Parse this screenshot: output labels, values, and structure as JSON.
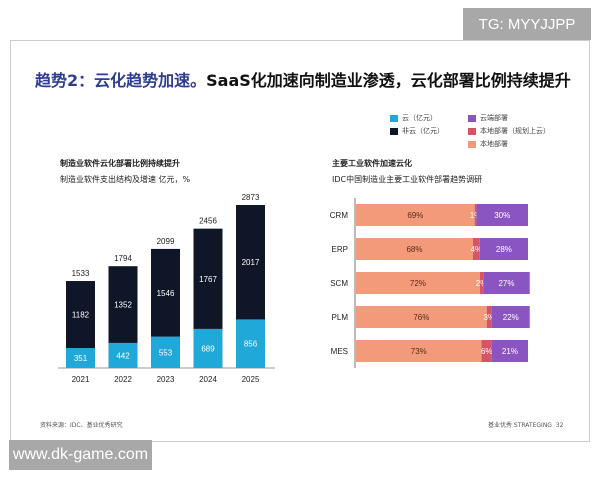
{
  "watermark_top": "TG: MYYJJPP",
  "watermark_bottom": "www.dk-game.com",
  "title": {
    "highlight": "趋势2：云化趋势加速。",
    "rest": "SaaS化加速向制造业渗透，云化部署比例持续提升"
  },
  "legend": [
    {
      "label": "云（亿元）",
      "color": "#1fa8d8"
    },
    {
      "label": "非云（亿元）",
      "color": "#0e1628"
    },
    {
      "label": "云端部署",
      "color": "#8a55c0"
    },
    {
      "label": "本地部署（规划上云）",
      "color": "#d65468"
    },
    {
      "label": "本地部署",
      "color": "#f29a7a"
    }
  ],
  "chart_data": [
    {
      "type": "bar",
      "stacked": true,
      "title": "制造业软件云化部署比例持续提升",
      "subtitle": "制造业软件支出结构及增速 亿元，%",
      "categories": [
        "2021",
        "2022",
        "2023",
        "2024",
        "2025"
      ],
      "series": [
        {
          "name": "云（亿元）",
          "values": [
            351,
            442,
            553,
            689,
            856
          ],
          "color": "#1fa8d8"
        },
        {
          "name": "非云（亿元）",
          "values": [
            1182,
            1352,
            1546,
            1767,
            2017
          ],
          "color": "#0e1628"
        }
      ],
      "totals": [
        1533,
        1794,
        2099,
        2456,
        2873
      ]
    },
    {
      "type": "bar",
      "orientation": "horizontal",
      "stacked": true,
      "title": "主要工业软件加速云化",
      "subtitle": "IDC中国制造业主要工业软件部署趋势调研",
      "categories": [
        "CRM",
        "ERP",
        "SCM",
        "PLM",
        "MES"
      ],
      "series": [
        {
          "name": "本地部署",
          "values": [
            69,
            68,
            72,
            76,
            73
          ],
          "color": "#f29a7a"
        },
        {
          "name": "本地部署（规划上云）",
          "values": [
            1,
            4,
            2,
            3,
            6
          ],
          "color": "#d65468"
        },
        {
          "name": "云端部署",
          "values": [
            30,
            28,
            27,
            22,
            21
          ],
          "color": "#8a55c0"
        }
      ],
      "unit": "%"
    }
  ],
  "footer": {
    "source": "资料来源：IDC、基业优秀研究",
    "brand": "基业优秀 STRATEGING",
    "page": "32"
  }
}
